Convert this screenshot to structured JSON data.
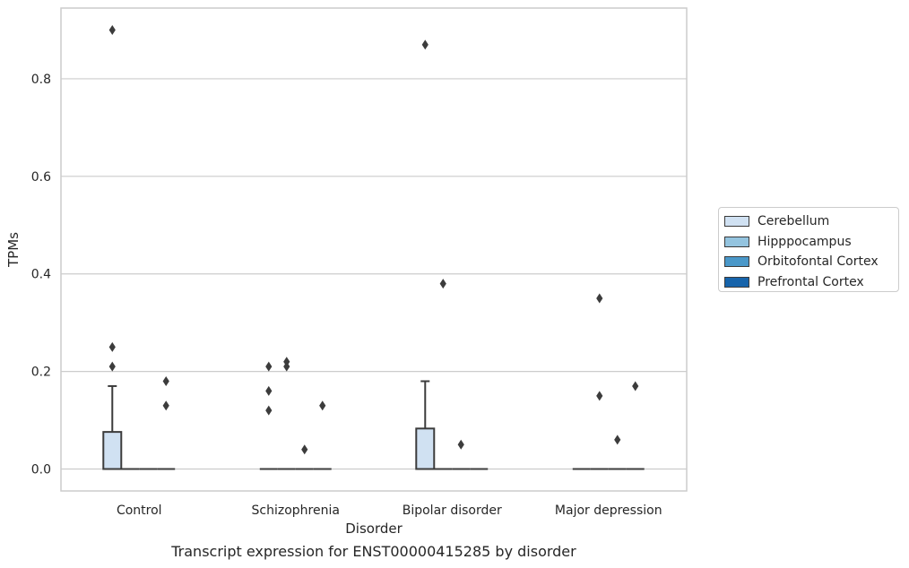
{
  "caption": "Transcript expression for ENST00000415285 by disorder",
  "chart_data": {
    "type": "box",
    "title": "",
    "xlabel": "Disorder",
    "ylabel": "TPMs",
    "categories": [
      "Control",
      "Schizophrenia",
      "Bipolar disorder",
      "Major depression"
    ],
    "ylim": [
      -0.045,
      0.945
    ],
    "yticks": [
      0.0,
      0.2,
      0.4,
      0.6,
      0.8
    ],
    "ytick_labels": [
      "0.0",
      "0.2",
      "0.4",
      "0.6",
      "0.8"
    ],
    "grid": "horizontal",
    "legend_position": "right",
    "series": [
      {
        "name": "Cerebellum",
        "color": "#d0e1f2",
        "boxes": [
          {
            "q1": 0,
            "median": 0,
            "q3": 0.076,
            "whisker_low": 0,
            "whisker_high": 0.17,
            "outliers": [
              0.21,
              0.25,
              0.9
            ]
          },
          {
            "q1": 0,
            "median": 0,
            "q3": 0,
            "whisker_low": 0,
            "whisker_high": 0,
            "outliers": [
              0.12,
              0.16,
              0.21
            ]
          },
          {
            "q1": 0,
            "median": 0,
            "q3": 0.083,
            "whisker_low": 0,
            "whisker_high": 0.18,
            "outliers": [
              0.87
            ]
          },
          {
            "q1": 0,
            "median": 0,
            "q3": 0,
            "whisker_low": 0,
            "whisker_high": 0,
            "outliers": []
          }
        ]
      },
      {
        "name": "Hipppocampus",
        "color": "#94c4df",
        "boxes": [
          {
            "q1": 0,
            "median": 0,
            "q3": 0,
            "whisker_low": 0,
            "whisker_high": 0,
            "outliers": []
          },
          {
            "q1": 0,
            "median": 0,
            "q3": 0,
            "whisker_low": 0,
            "whisker_high": 0,
            "outliers": [
              0.21,
              0.22
            ]
          },
          {
            "q1": 0,
            "median": 0,
            "q3": 0,
            "whisker_low": 0,
            "whisker_high": 0,
            "outliers": [
              0.38
            ]
          },
          {
            "q1": 0,
            "median": 0,
            "q3": 0,
            "whisker_low": 0,
            "whisker_high": 0,
            "outliers": [
              0.15,
              0.35
            ]
          }
        ]
      },
      {
        "name": "Orbitofontal Cortex",
        "color": "#4a98c9",
        "boxes": [
          {
            "q1": 0,
            "median": 0,
            "q3": 0,
            "whisker_low": 0,
            "whisker_high": 0,
            "outliers": []
          },
          {
            "q1": 0,
            "median": 0,
            "q3": 0,
            "whisker_low": 0,
            "whisker_high": 0,
            "outliers": [
              0.04
            ]
          },
          {
            "q1": 0,
            "median": 0,
            "q3": 0,
            "whisker_low": 0,
            "whisker_high": 0,
            "outliers": [
              0.05
            ]
          },
          {
            "q1": 0,
            "median": 0,
            "q3": 0,
            "whisker_low": 0,
            "whisker_high": 0,
            "outliers": [
              0.06
            ]
          }
        ]
      },
      {
        "name": "Prefrontal Cortex",
        "color": "#1764ab",
        "boxes": [
          {
            "q1": 0,
            "median": 0,
            "q3": 0,
            "whisker_low": 0,
            "whisker_high": 0,
            "outliers": [
              0.13,
              0.18
            ]
          },
          {
            "q1": 0,
            "median": 0,
            "q3": 0,
            "whisker_low": 0,
            "whisker_high": 0,
            "outliers": [
              0.13
            ]
          },
          {
            "q1": 0,
            "median": 0,
            "q3": 0,
            "whisker_low": 0,
            "whisker_high": 0,
            "outliers": []
          },
          {
            "q1": 0,
            "median": 0,
            "q3": 0,
            "whisker_low": 0,
            "whisker_high": 0,
            "outliers": [
              0.17
            ]
          }
        ]
      }
    ]
  }
}
